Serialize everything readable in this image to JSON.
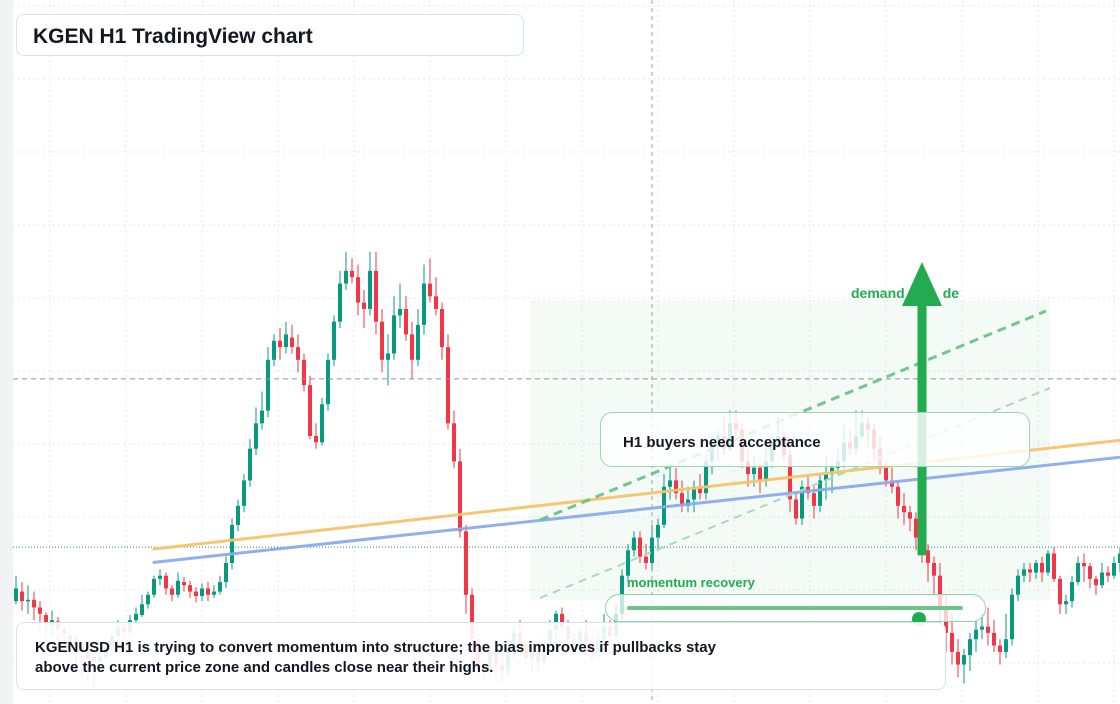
{
  "title": "KGEN H1 TradingView chart",
  "annotations": {
    "acceptance": "H1 buyers need acceptance",
    "note": "KGENUSD H1 is trying to convert momentum into structure; the bias improves if pullbacks stay above the current price zone and candles close near their highs.",
    "momentum_label": "momentum recovery",
    "momentum_level": 0.87,
    "demand_label_left": "demand",
    "demand_label_right": "de"
  },
  "colors": {
    "up": "#089981",
    "down": "#f23645",
    "resistance_line": "#f7c46c",
    "trend_line": "#8cabee",
    "accent_green": "#22ab4f",
    "grid": "#e6e9ef"
  },
  "chart_data": {
    "type": "candlestick",
    "symbol": "KGENUSD",
    "timeframe": "H1",
    "bar_interval": 6,
    "y_range": [
      0,
      1000
    ],
    "candles_ohlc": [
      [
        140,
        160,
        180,
        135
      ],
      [
        155,
        140,
        170,
        125
      ],
      [
        140,
        142,
        165,
        120
      ],
      [
        142,
        130,
        155,
        110
      ],
      [
        130,
        120,
        140,
        95
      ],
      [
        118,
        105,
        122,
        80
      ],
      [
        102,
        110,
        125,
        85
      ],
      [
        108,
        95,
        115,
        70
      ],
      [
        95,
        88,
        102,
        60
      ],
      [
        86,
        80,
        95,
        45
      ],
      [
        80,
        70,
        90,
        35
      ],
      [
        72,
        60,
        78,
        20
      ],
      [
        60,
        50,
        65,
        10
      ],
      [
        52,
        45,
        55,
        5
      ],
      [
        45,
        52,
        62,
        40
      ],
      [
        52,
        68,
        78,
        48
      ],
      [
        68,
        85,
        90,
        60
      ],
      [
        85,
        98,
        110,
        78
      ],
      [
        98,
        92,
        104,
        80
      ],
      [
        92,
        110,
        118,
        86
      ],
      [
        110,
        120,
        130,
        105
      ],
      [
        118,
        135,
        150,
        115
      ],
      [
        135,
        150,
        155,
        128
      ],
      [
        150,
        175,
        180,
        145
      ],
      [
        175,
        180,
        190,
        165
      ],
      [
        180,
        160,
        185,
        150
      ],
      [
        160,
        150,
        165,
        140
      ],
      [
        150,
        172,
        185,
        145
      ],
      [
        170,
        165,
        178,
        155
      ],
      [
        165,
        155,
        172,
        145
      ],
      [
        155,
        148,
        162,
        138
      ],
      [
        148,
        160,
        168,
        140
      ],
      [
        160,
        150,
        170,
        140
      ],
      [
        150,
        155,
        165,
        145
      ],
      [
        155,
        170,
        180,
        150
      ],
      [
        170,
        200,
        210,
        160
      ],
      [
        200,
        260,
        270,
        190
      ],
      [
        260,
        290,
        300,
        250
      ],
      [
        290,
        330,
        340,
        280
      ],
      [
        330,
        380,
        395,
        320
      ],
      [
        380,
        420,
        445,
        370
      ],
      [
        420,
        440,
        470,
        410
      ],
      [
        440,
        520,
        540,
        430
      ],
      [
        520,
        550,
        560,
        510
      ],
      [
        550,
        540,
        570,
        520
      ],
      [
        540,
        560,
        580,
        530
      ],
      [
        555,
        540,
        575,
        530
      ],
      [
        540,
        520,
        560,
        500
      ],
      [
        520,
        480,
        530,
        470
      ],
      [
        480,
        400,
        495,
        395
      ],
      [
        400,
        390,
        420,
        380
      ],
      [
        390,
        450,
        460,
        385
      ],
      [
        450,
        520,
        530,
        440
      ],
      [
        520,
        580,
        590,
        510
      ],
      [
        580,
        640,
        660,
        570
      ],
      [
        640,
        660,
        690,
        630
      ],
      [
        660,
        650,
        680,
        640
      ],
      [
        650,
        610,
        670,
        590
      ],
      [
        610,
        600,
        630,
        570
      ],
      [
        600,
        660,
        690,
        590
      ],
      [
        660,
        580,
        690,
        560
      ],
      [
        580,
        520,
        600,
        500
      ],
      [
        520,
        530,
        560,
        480
      ],
      [
        530,
        590,
        620,
        520
      ],
      [
        590,
        600,
        640,
        570
      ],
      [
        600,
        560,
        620,
        550
      ],
      [
        560,
        520,
        580,
        490
      ],
      [
        520,
        575,
        600,
        510
      ],
      [
        575,
        640,
        670,
        560
      ],
      [
        640,
        620,
        680,
        610
      ],
      [
        620,
        600,
        650,
        590
      ],
      [
        600,
        540,
        610,
        520
      ],
      [
        540,
        420,
        560,
        410
      ],
      [
        420,
        360,
        440,
        350
      ],
      [
        360,
        250,
        380,
        240
      ],
      [
        250,
        150,
        260,
        120
      ],
      [
        150,
        80,
        160,
        40
      ],
      [
        80,
        40,
        90,
        20
      ],
      [
        40,
        30,
        50,
        15
      ],
      [
        30,
        60,
        70,
        20
      ],
      [
        60,
        40,
        75,
        20
      ],
      [
        40,
        30,
        50,
        10
      ],
      [
        30,
        60,
        80,
        20
      ],
      [
        60,
        90,
        100,
        50
      ],
      [
        90,
        70,
        110,
        60
      ],
      [
        70,
        50,
        80,
        40
      ],
      [
        50,
        60,
        70,
        30
      ],
      [
        60,
        45,
        75,
        30
      ],
      [
        45,
        70,
        85,
        40
      ],
      [
        70,
        95,
        110,
        65
      ],
      [
        95,
        120,
        125,
        80
      ],
      [
        120,
        100,
        130,
        90
      ],
      [
        100,
        80,
        110,
        70
      ],
      [
        80,
        70,
        90,
        55
      ],
      [
        70,
        90,
        100,
        60
      ],
      [
        90,
        75,
        110,
        70
      ],
      [
        75,
        60,
        85,
        45
      ],
      [
        60,
        80,
        95,
        50
      ],
      [
        80,
        100,
        120,
        70
      ],
      [
        100,
        85,
        110,
        75
      ],
      [
        85,
        120,
        135,
        80
      ],
      [
        120,
        180,
        190,
        110
      ],
      [
        180,
        220,
        230,
        170
      ],
      [
        220,
        240,
        250,
        210
      ],
      [
        240,
        210,
        250,
        200
      ],
      [
        210,
        200,
        230,
        190
      ],
      [
        200,
        240,
        260,
        190
      ],
      [
        240,
        260,
        270,
        220
      ],
      [
        260,
        320,
        340,
        255
      ],
      [
        320,
        330,
        350,
        300
      ],
      [
        330,
        310,
        350,
        300
      ],
      [
        310,
        290,
        330,
        280
      ],
      [
        290,
        300,
        320,
        280
      ],
      [
        300,
        320,
        330,
        280
      ],
      [
        320,
        310,
        340,
        300
      ],
      [
        310,
        360,
        370,
        300
      ],
      [
        360,
        390,
        400,
        340
      ],
      [
        390,
        400,
        410,
        360
      ],
      [
        400,
        380,
        430,
        370
      ],
      [
        380,
        420,
        440,
        375
      ],
      [
        420,
        410,
        440,
        400
      ],
      [
        410,
        360,
        420,
        350
      ],
      [
        360,
        340,
        380,
        320
      ],
      [
        340,
        350,
        370,
        320
      ],
      [
        350,
        330,
        360,
        310
      ],
      [
        330,
        360,
        380,
        320
      ],
      [
        360,
        390,
        400,
        350
      ],
      [
        390,
        400,
        430,
        385
      ],
      [
        400,
        370,
        410,
        360
      ],
      [
        370,
        300,
        390,
        280
      ],
      [
        300,
        270,
        310,
        260
      ],
      [
        270,
        320,
        330,
        260
      ],
      [
        320,
        310,
        340,
        300
      ],
      [
        310,
        290,
        320,
        270
      ],
      [
        290,
        330,
        340,
        280
      ],
      [
        330,
        340,
        370,
        300
      ],
      [
        340,
        350,
        360,
        310
      ],
      [
        350,
        360,
        380,
        340
      ],
      [
        360,
        390,
        420,
        350
      ],
      [
        390,
        380,
        410,
        370
      ],
      [
        380,
        400,
        440,
        370
      ],
      [
        400,
        420,
        440,
        395
      ],
      [
        420,
        410,
        430,
        380
      ],
      [
        410,
        380,
        420,
        360
      ],
      [
        380,
        350,
        400,
        340
      ],
      [
        350,
        330,
        360,
        320
      ],
      [
        330,
        320,
        350,
        310
      ],
      [
        320,
        290,
        330,
        270
      ],
      [
        290,
        280,
        310,
        260
      ],
      [
        280,
        270,
        290,
        250
      ],
      [
        270,
        240,
        280,
        220
      ],
      [
        240,
        220,
        250,
        200
      ],
      [
        220,
        200,
        230,
        170
      ],
      [
        200,
        180,
        210,
        150
      ],
      [
        180,
        130,
        200,
        100
      ],
      [
        130,
        90,
        150,
        60
      ],
      [
        90,
        60,
        120,
        40
      ],
      [
        60,
        40,
        80,
        20
      ],
      [
        40,
        55,
        65,
        10
      ],
      [
        55,
        80,
        90,
        30
      ],
      [
        80,
        95,
        110,
        60
      ],
      [
        95,
        100,
        120,
        80
      ],
      [
        100,
        90,
        130,
        70
      ],
      [
        90,
        70,
        110,
        60
      ],
      [
        70,
        60,
        80,
        40
      ],
      [
        60,
        80,
        120,
        50
      ],
      [
        80,
        150,
        160,
        70
      ],
      [
        150,
        180,
        190,
        140
      ],
      [
        180,
        190,
        200,
        170
      ],
      [
        190,
        185,
        200,
        170
      ],
      [
        185,
        200,
        205,
        175
      ],
      [
        200,
        185,
        210,
        170
      ],
      [
        185,
        215,
        220,
        180
      ],
      [
        215,
        175,
        225,
        170
      ],
      [
        175,
        135,
        180,
        120
      ],
      [
        135,
        140,
        150,
        120
      ],
      [
        140,
        170,
        180,
        130
      ],
      [
        170,
        200,
        210,
        165
      ],
      [
        200,
        195,
        215,
        170
      ],
      [
        195,
        175,
        200,
        160
      ],
      [
        175,
        165,
        180,
        150
      ],
      [
        165,
        185,
        200,
        160
      ],
      [
        185,
        180,
        195,
        170
      ],
      [
        180,
        200,
        210,
        175
      ],
      [
        200,
        215,
        225,
        185
      ],
      [
        215,
        210,
        230,
        200
      ],
      [
        210,
        225,
        240,
        200
      ],
      [
        225,
        265,
        275,
        215
      ],
      [
        265,
        235,
        280,
        230
      ],
      [
        235,
        245,
        260,
        220
      ],
      [
        245,
        225,
        250,
        215
      ],
      [
        225,
        240,
        265,
        210
      ],
      [
        240,
        260,
        285,
        230
      ],
      [
        260,
        245,
        270,
        235
      ],
      [
        245,
        215,
        250,
        200
      ],
      [
        215,
        170,
        220,
        160
      ],
      [
        170,
        150,
        180,
        140
      ],
      [
        150,
        200,
        210,
        140
      ],
      [
        200,
        210,
        250,
        195
      ]
    ],
    "overlay_lines": [
      {
        "color": "#f7c46c",
        "from": [
          -59,
          222
        ],
        "to": [
          158,
          453
        ]
      },
      {
        "color": "#8cabee",
        "from": [
          -59,
          201
        ],
        "to": [
          158,
          424
        ]
      }
    ],
    "horizontal_levels": [
      {
        "style": "dashed",
        "value": 490
      },
      {
        "style": "dotted",
        "value": 225
      }
    ],
    "arrow": {
      "from": [
        123,
        212
      ],
      "to": [
        123,
        470
      ]
    }
  }
}
